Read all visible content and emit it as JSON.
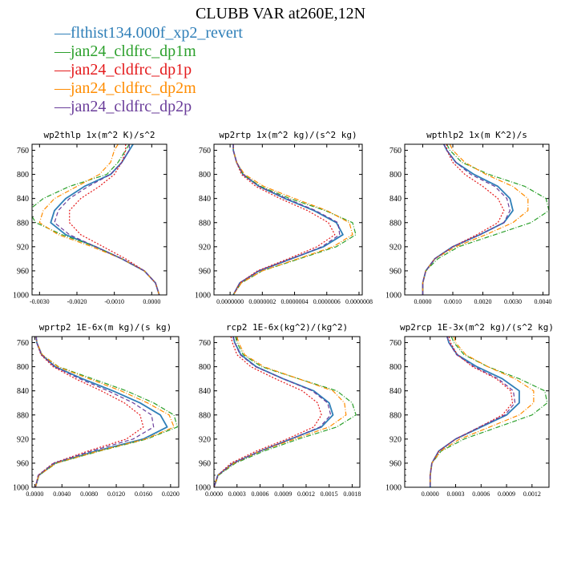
{
  "title": "CLUBB VAR at260E,12N",
  "legend": [
    {
      "label": "flthist134.000f_xp2_revert",
      "color": "#2f7fb8",
      "dash": "solid"
    },
    {
      "label": "jan24_cldfrc_dp1m",
      "color": "#2ca02c",
      "dash": "dashdot"
    },
    {
      "label": "jan24_cldfrc_dp1p",
      "color": "#e41a1c",
      "dash": "dotted"
    },
    {
      "label": "jan24_cldfrc_dp2m",
      "color": "#ff8c00",
      "dash": "dashdot"
    },
    {
      "label": "jan24_cldfrc_dp2p",
      "color": "#6a3d9a",
      "dash": "dashed"
    }
  ],
  "chart_data": [
    {
      "type": "line",
      "title": "wp2thlp  1x(m^2 K)/s^2",
      "xlim": [
        -0.0032,
        0.0004
      ],
      "ylim": [
        1000,
        750
      ],
      "xticks": [
        -0.003,
        -0.002,
        -0.001,
        0.0
      ],
      "xtick_labels": [
        "-0.0030",
        "-0.0020",
        "-0.0010",
        "0.0000"
      ],
      "yticks": [
        760,
        800,
        840,
        880,
        920,
        960,
        1000
      ],
      "y": [
        750,
        760,
        780,
        800,
        820,
        840,
        860,
        880,
        900,
        920,
        940,
        960,
        980,
        1000
      ],
      "series": [
        {
          "values": [
            -0.0005,
            -0.0006,
            -0.0008,
            -0.0011,
            -0.0018,
            -0.0023,
            -0.0026,
            -0.0027,
            -0.0023,
            -0.0015,
            -0.0008,
            -0.0002,
            0.0001,
            0.0002
          ]
        },
        {
          "values": [
            -0.0006,
            -0.0007,
            -0.0009,
            -0.0012,
            -0.0022,
            -0.0029,
            -0.0033,
            -0.0031,
            -0.0024,
            -0.0015,
            -0.0008,
            -0.0002,
            0.0001,
            0.0002
          ]
        },
        {
          "values": [
            -0.0007,
            -0.0007,
            -0.0008,
            -0.001,
            -0.0014,
            -0.0019,
            -0.0022,
            -0.0022,
            -0.0019,
            -0.0013,
            -0.0007,
            -0.0002,
            0.0001,
            0.0002
          ]
        },
        {
          "values": [
            -0.0009,
            -0.001,
            -0.0011,
            -0.0014,
            -0.002,
            -0.0026,
            -0.0029,
            -0.003,
            -0.0025,
            -0.0016,
            -0.0008,
            -0.0002,
            0.0001,
            0.0002
          ]
        },
        {
          "values": [
            -0.0006,
            -0.0006,
            -0.0008,
            -0.0011,
            -0.0017,
            -0.0022,
            -0.0025,
            -0.0026,
            -0.0022,
            -0.0015,
            -0.0008,
            -0.0002,
            0.0001,
            0.0002
          ]
        }
      ]
    },
    {
      "type": "line",
      "title": "wp2rtp  1x(m^2 kg)/(s^2 kg)",
      "xlim": [
        -1e-07,
        8.2e-07
      ],
      "ylim": [
        1000,
        750
      ],
      "xticks": [
        0.0,
        2e-07,
        4e-07,
        6e-07,
        8e-07
      ],
      "xtick_labels": [
        "0.0000000",
        "0.0000002",
        "0.0000004",
        "0.0000006",
        "0.0000008"
      ],
      "yticks": [
        760,
        800,
        840,
        880,
        920,
        960,
        1000
      ],
      "y": [
        750,
        760,
        780,
        800,
        820,
        840,
        860,
        880,
        900,
        920,
        940,
        960,
        980,
        1000
      ],
      "series": [
        {
          "values": [
            2e-08,
            2e-08,
            4e-08,
            8e-08,
            1.8e-07,
            3.4e-07,
            5.2e-07,
            6.6e-07,
            7e-07,
            5.8e-07,
            3.8e-07,
            1.8e-07,
            6e-08,
            2e-08
          ]
        },
        {
          "values": [
            2e-08,
            2e-08,
            4e-08,
            8e-08,
            1.9e-07,
            3.7e-07,
            5.9e-07,
            7.6e-07,
            7.8e-07,
            6.6e-07,
            4.3e-07,
            2e-07,
            7e-08,
            2e-08
          ]
        },
        {
          "values": [
            2e-08,
            2e-08,
            4e-08,
            7e-08,
            1.6e-07,
            3.1e-07,
            4.8e-07,
            6.1e-07,
            6.5e-07,
            5.4e-07,
            3.6e-07,
            1.7e-07,
            6e-08,
            2e-08
          ]
        },
        {
          "values": [
            2e-08,
            2e-08,
            4e-08,
            9e-08,
            2.1e-07,
            4e-07,
            6e-07,
            7.4e-07,
            7.6e-07,
            6.4e-07,
            4.2e-07,
            2e-07,
            7e-08,
            2e-08
          ]
        },
        {
          "values": [
            2e-08,
            2e-08,
            4e-08,
            8e-08,
            1.8e-07,
            3.5e-07,
            5.3e-07,
            6.7e-07,
            6.8e-07,
            5.7e-07,
            3.8e-07,
            1.8e-07,
            6e-08,
            2e-08
          ]
        }
      ]
    },
    {
      "type": "line",
      "title": "wpthlp2  1x(m K^2)/s",
      "xlim": [
        -0.0006,
        0.0042
      ],
      "ylim": [
        1000,
        750
      ],
      "xticks": [
        0.0,
        0.001,
        0.002,
        0.003,
        0.004
      ],
      "xtick_labels": [
        "0.0000",
        "0.0010",
        "0.0020",
        "0.0030",
        "0.0040"
      ],
      "yticks": [
        760,
        800,
        840,
        880,
        920,
        960,
        1000
      ],
      "y": [
        750,
        760,
        780,
        800,
        820,
        840,
        860,
        880,
        900,
        920,
        940,
        960,
        980,
        1000
      ],
      "series": [
        {
          "values": [
            0.0007,
            0.0008,
            0.0011,
            0.0017,
            0.0025,
            0.0029,
            0.003,
            0.0027,
            0.0019,
            0.001,
            0.0004,
            0.0001,
            0.0,
            0.0
          ]
        },
        {
          "values": [
            0.0008,
            0.0009,
            0.0013,
            0.0022,
            0.0034,
            0.0041,
            0.0042,
            0.0036,
            0.0024,
            0.0012,
            0.0005,
            0.0001,
            0.0,
            0.0
          ]
        },
        {
          "values": [
            0.0008,
            0.0008,
            0.001,
            0.0014,
            0.002,
            0.0025,
            0.0027,
            0.0025,
            0.0018,
            0.001,
            0.0004,
            0.0001,
            0.0,
            0.0
          ]
        },
        {
          "values": [
            0.0009,
            0.001,
            0.0014,
            0.0021,
            0.003,
            0.0035,
            0.0035,
            0.003,
            0.0021,
            0.0011,
            0.0004,
            0.0001,
            0.0,
            0.0
          ]
        },
        {
          "values": [
            0.0007,
            0.0008,
            0.0011,
            0.0016,
            0.0024,
            0.0028,
            0.0029,
            0.0027,
            0.0019,
            0.001,
            0.0004,
            0.0001,
            0.0,
            0.0
          ]
        }
      ]
    },
    {
      "type": "line",
      "title": "wprtp2  1E-6x(m kg)/(s kg)",
      "xlim": [
        -0.0004,
        0.0212
      ],
      "ylim": [
        1000,
        750
      ],
      "xticks": [
        0.0,
        0.004,
        0.008,
        0.012,
        0.016,
        0.02
      ],
      "xtick_labels": [
        "0.0000",
        "0.0040",
        "0.0080",
        "0.0120",
        "0.0160",
        "0.0200"
      ],
      "yticks": [
        760,
        800,
        840,
        880,
        920,
        960,
        1000
      ],
      "y": [
        750,
        760,
        780,
        800,
        820,
        840,
        860,
        880,
        900,
        920,
        940,
        960,
        980,
        1000
      ],
      "series": [
        {
          "values": [
            0.0002,
            0.0003,
            0.001,
            0.003,
            0.007,
            0.0115,
            0.0155,
            0.0185,
            0.0195,
            0.016,
            0.009,
            0.003,
            0.0006,
            0.0001
          ]
        },
        {
          "values": [
            0.0002,
            0.0003,
            0.0011,
            0.0035,
            0.0085,
            0.0135,
            0.0175,
            0.0205,
            0.021,
            0.0165,
            0.0095,
            0.0032,
            0.0006,
            0.0001
          ]
        },
        {
          "values": [
            0.0002,
            0.0003,
            0.0009,
            0.0027,
            0.006,
            0.0098,
            0.0132,
            0.0155,
            0.016,
            0.0135,
            0.0078,
            0.0027,
            0.0005,
            0.0001
          ]
        },
        {
          "values": [
            0.0002,
            0.0003,
            0.0011,
            0.0034,
            0.008,
            0.0127,
            0.0166,
            0.0198,
            0.0205,
            0.0163,
            0.0093,
            0.0031,
            0.0006,
            0.0001
          ]
        },
        {
          "values": [
            0.0002,
            0.0003,
            0.001,
            0.0029,
            0.0066,
            0.0108,
            0.0145,
            0.0172,
            0.0175,
            0.0145,
            0.0083,
            0.0028,
            0.0005,
            0.0001
          ]
        }
      ]
    },
    {
      "type": "line",
      "title": "rcp2  1E-6x(kg^2)/(kg^2)",
      "xlim": [
        0.0,
        0.0019
      ],
      "ylim": [
        1000,
        750
      ],
      "xticks": [
        0.0,
        0.0003,
        0.0006,
        0.0009,
        0.0012,
        0.0015,
        0.0018
      ],
      "xtick_labels": [
        "0.0000",
        "0.0003",
        "0.0006",
        "0.0009",
        "0.0012",
        "0.0015",
        "0.0018"
      ],
      "yticks": [
        760,
        800,
        840,
        880,
        920,
        960,
        1000
      ],
      "y": [
        750,
        760,
        780,
        800,
        820,
        840,
        860,
        880,
        900,
        920,
        940,
        960,
        980,
        1000
      ],
      "series": [
        {
          "values": [
            0.00025,
            0.00027,
            0.00035,
            0.00055,
            0.0009,
            0.0013,
            0.0015,
            0.00155,
            0.0014,
            0.001,
            0.0006,
            0.00025,
            5e-05,
            0.0
          ]
        },
        {
          "values": [
            0.00028,
            0.0003,
            0.00038,
            0.00062,
            0.0011,
            0.0016,
            0.0018,
            0.00185,
            0.0016,
            0.0011,
            0.00065,
            0.00028,
            6e-05,
            0.0
          ]
        },
        {
          "values": [
            0.00022,
            0.00024,
            0.0003,
            0.00048,
            0.0008,
            0.00115,
            0.00135,
            0.0014,
            0.0013,
            0.00095,
            0.00055,
            0.00022,
            5e-05,
            0.0
          ]
        },
        {
          "values": [
            0.0003,
            0.00032,
            0.0004,
            0.00065,
            0.0011,
            0.00155,
            0.0017,
            0.00172,
            0.0015,
            0.00105,
            0.0006,
            0.00026,
            5e-05,
            0.0
          ]
        },
        {
          "values": [
            0.00025,
            0.00027,
            0.00034,
            0.00054,
            0.0009,
            0.00128,
            0.00148,
            0.00152,
            0.00138,
            0.001,
            0.0006,
            0.00025,
            5e-05,
            0.0
          ]
        }
      ]
    },
    {
      "type": "line",
      "title": "wp2rcp  1E-3x(m^2 kg)/(s^2 kg)",
      "xlim": [
        -0.0003,
        0.0014
      ],
      "ylim": [
        1000,
        750
      ],
      "xticks": [
        0.0,
        0.0003,
        0.0006,
        0.0009,
        0.0012
      ],
      "xtick_labels": [
        "0.0000",
        "0.0003",
        "0.0006",
        "0.0009",
        "0.0012"
      ],
      "yticks": [
        760,
        800,
        840,
        880,
        920,
        960,
        1000
      ],
      "y": [
        750,
        760,
        780,
        800,
        820,
        840,
        860,
        880,
        900,
        920,
        940,
        960,
        980,
        1000
      ],
      "series": [
        {
          "values": [
            0.0002,
            0.00022,
            0.00032,
            0.00055,
            0.00085,
            0.00105,
            0.00105,
            0.0009,
            0.0006,
            0.0003,
            0.0001,
            2e-05,
            0.0,
            0.0
          ]
        },
        {
          "values": [
            0.00025,
            0.00028,
            0.0004,
            0.00068,
            0.00105,
            0.00135,
            0.00138,
            0.0012,
            0.0008,
            0.0004,
            0.00013,
            2e-05,
            0.0,
            0.0
          ]
        },
        {
          "values": [
            0.00022,
            0.00024,
            0.00032,
            0.0005,
            0.00078,
            0.00095,
            0.00097,
            0.00085,
            0.00058,
            0.0003,
            0.0001,
            2e-05,
            0.0,
            0.0
          ]
        },
        {
          "values": [
            0.00028,
            0.0003,
            0.00042,
            0.00068,
            0.001,
            0.00122,
            0.00122,
            0.00105,
            0.0007,
            0.00035,
            0.00012,
            2e-05,
            0.0,
            0.0
          ]
        },
        {
          "values": [
            0.0002,
            0.00022,
            0.00031,
            0.00052,
            0.0008,
            0.00098,
            0.001,
            0.00088,
            0.00058,
            0.0003,
            0.0001,
            2e-05,
            0.0,
            0.0
          ]
        }
      ]
    }
  ]
}
